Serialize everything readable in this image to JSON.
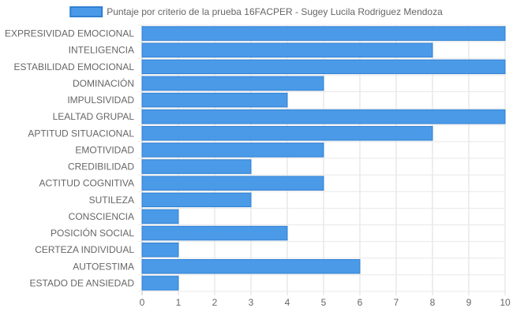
{
  "chart_data": {
    "type": "bar",
    "orientation": "horizontal",
    "title": "",
    "legend_position": "top",
    "series": [
      {
        "name": "Puntaje por criterio de la prueba 16FACPER - Sugey Lucila Rodriguez Mendoza",
        "color": "#4a9ae8",
        "border_color": "#2f7fd1",
        "values": [
          10,
          8,
          10,
          5,
          4,
          10,
          8,
          5,
          3,
          5,
          3,
          1,
          4,
          1,
          6,
          1
        ]
      }
    ],
    "categories": [
      "EXPRESIVIDAD EMOCIONAL",
      "INTELIGENCIA",
      "ESTABILIDAD EMOCIONAL",
      "DOMINACIÓN",
      "IMPULSIVIDAD",
      "LEALTAD GRUPAL",
      "APTITUD SITUACIONAL",
      "EMOTIVIDAD",
      "CREDIBILIDAD",
      "ACTITUD COGNITIVA",
      "SUTILEZA",
      "CONSCIENCIA",
      "POSICIÓN SOCIAL",
      "CERTEZA INDIVIDUAL",
      "AUTOESTIMA",
      "ESTADO DE ANSIEDAD"
    ],
    "x_ticks": [
      "0",
      "1",
      "2",
      "3",
      "4",
      "5",
      "6",
      "7",
      "8",
      "9",
      "10"
    ],
    "xlim": [
      0,
      10
    ],
    "xlabel": "",
    "ylabel": "",
    "grid": true
  }
}
